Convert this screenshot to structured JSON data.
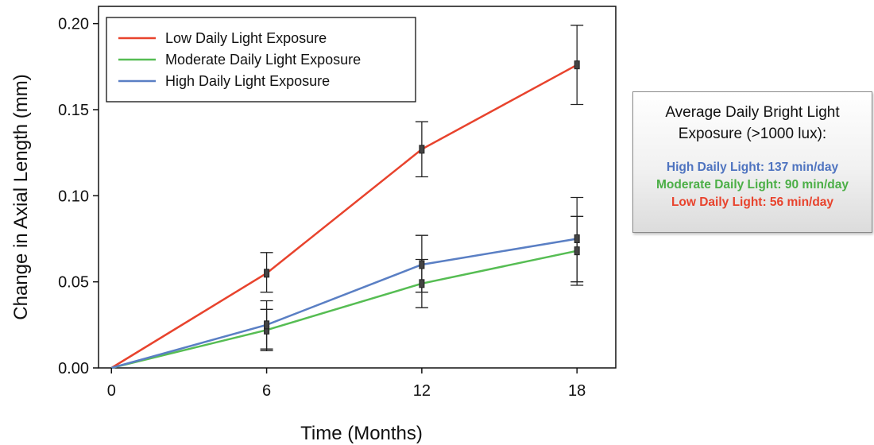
{
  "chart_data": {
    "type": "line",
    "xlabel": "Time (Months)",
    "ylabel": "Change in Axial Length (mm)",
    "x": [
      0,
      6,
      12,
      18
    ],
    "xticks": [
      0,
      6,
      12,
      18
    ],
    "xtick_labels": [
      "0",
      "6",
      "12",
      "18"
    ],
    "yticks": [
      0,
      0.05,
      0.1,
      0.15,
      0.2
    ],
    "ytick_labels": [
      "0.00",
      "0.05",
      "0.10",
      "0.15",
      "0.20"
    ],
    "xlim": [
      -0.5,
      19.5
    ],
    "ylim": [
      0,
      0.21
    ],
    "grid": false,
    "legend_position": "top-left",
    "series": [
      {
        "name": "Low Daily Light Exposure",
        "color": "#e8432d",
        "values": [
          0,
          0.055,
          0.127,
          0.176
        ],
        "err_low": [
          0,
          0.044,
          0.111,
          0.153
        ],
        "err_high": [
          0,
          0.067,
          0.143,
          0.199
        ]
      },
      {
        "name": "Moderate Daily Light Exposure",
        "color": "#56bd53",
        "values": [
          0,
          0.022,
          0.049,
          0.068
        ],
        "err_low": [
          0,
          0.011,
          0.035,
          0.048
        ],
        "err_high": [
          0,
          0.034,
          0.063,
          0.088
        ]
      },
      {
        "name": "High Daily Light Exposure",
        "color": "#5a7fc4",
        "values": [
          0,
          0.025,
          0.06,
          0.075
        ],
        "err_low": [
          0,
          0.01,
          0.044,
          0.05
        ],
        "err_high": [
          0,
          0.039,
          0.077,
          0.099
        ]
      }
    ]
  },
  "info_box": {
    "title": "Average Daily Bright Light Exposure (>1000 lux):",
    "lines": [
      {
        "text": "High Daily Light: 137 min/day",
        "color": "#4f74c0"
      },
      {
        "text": "Moderate Daily Light: 90 min/day",
        "color": "#4caf47"
      },
      {
        "text": "Low Daily Light: 56 min/day",
        "color": "#e8432d"
      }
    ]
  }
}
